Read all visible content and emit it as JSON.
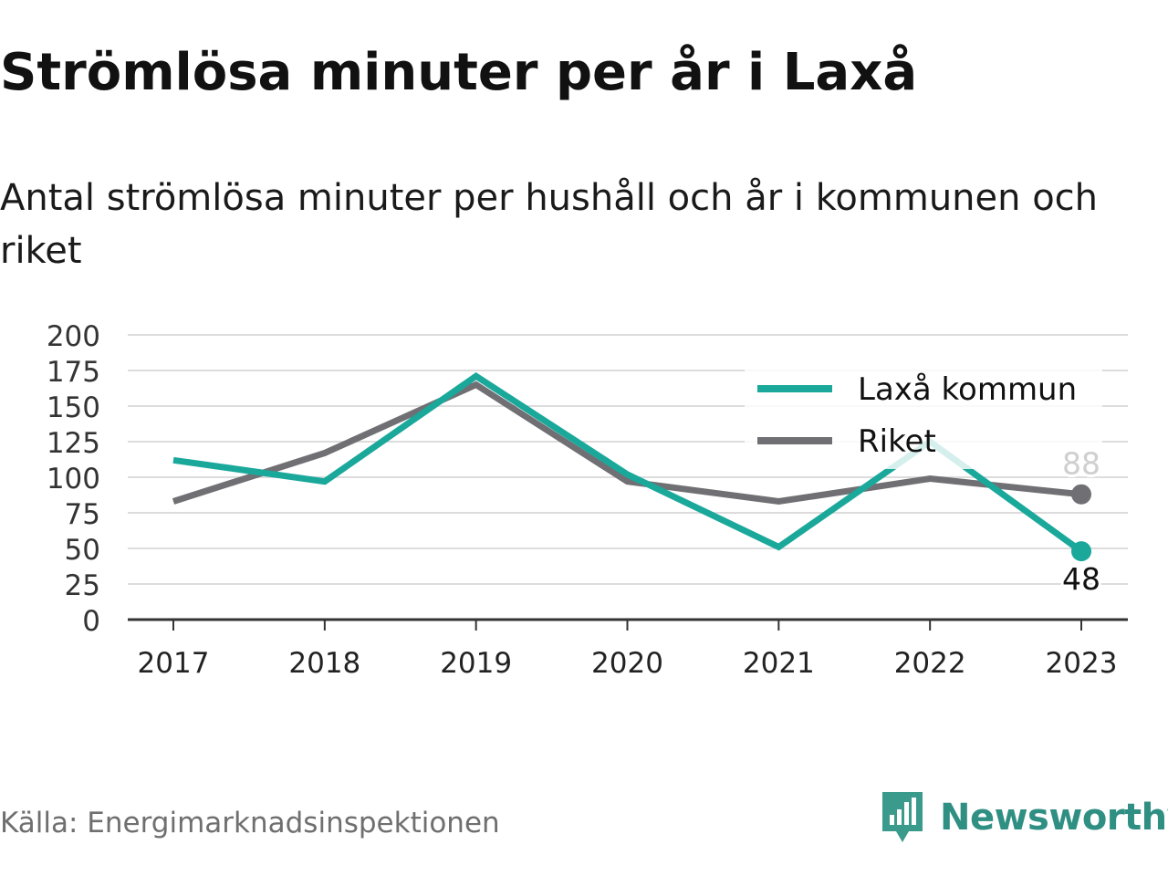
{
  "title": "Strömlösa minuter per år i Laxå",
  "subtitle": "Antal strömlösa minuter per hushåll och år i kommunen och riket",
  "source": "Källa: Energimarknadsinspektionen",
  "brand": {
    "name": "Newsworthy",
    "icon": "newsworthy-logo-icon",
    "color": "#3a9a8c"
  },
  "chart_data": {
    "type": "line",
    "x": [
      "2017",
      "2018",
      "2019",
      "2020",
      "2021",
      "2022",
      "2023"
    ],
    "yticks": [
      "0",
      "25",
      "50",
      "75",
      "100",
      "125",
      "150",
      "175",
      "200"
    ],
    "ylim": [
      0,
      200
    ],
    "grid": true,
    "legend_position": "top-right",
    "series": [
      {
        "name": "Laxå kommun",
        "color": "#1aa89b",
        "values": [
          112,
          97,
          171,
          102,
          51,
          125,
          48
        ],
        "end_label": "48"
      },
      {
        "name": "Riket",
        "color": "#707074",
        "values": [
          83,
          117,
          165,
          97,
          83,
          99,
          88
        ],
        "end_label": "88"
      }
    ]
  }
}
